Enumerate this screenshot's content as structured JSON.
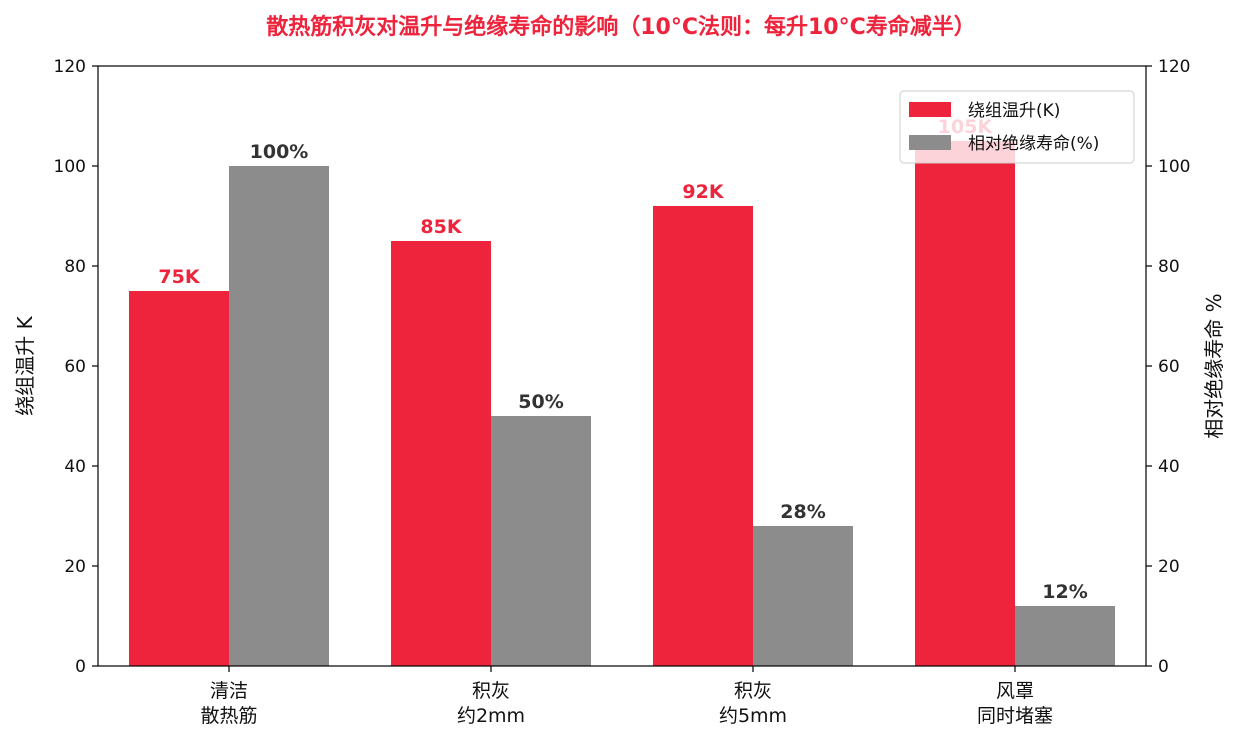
{
  "chart_data": {
    "type": "bar",
    "title": "散热筋积灰对温升与绝缘寿命的影响（10°C法则：每升10°C寿命减半）",
    "categories": [
      [
        "清洁",
        "散热筋"
      ],
      [
        "积灰",
        "约2mm"
      ],
      [
        "积灰",
        "约5mm"
      ],
      [
        "风罩",
        "同时堵塞"
      ]
    ],
    "series": [
      {
        "name": "绕组温升(K)",
        "axis": "left",
        "color": "#EE233C",
        "values": [
          75,
          85,
          92,
          105
        ],
        "labels": [
          "75K",
          "85K",
          "92K",
          "105K"
        ],
        "label_color": "#EE233C"
      },
      {
        "name": "相对绝缘寿命(%)",
        "axis": "right",
        "color": "#8C8C8C",
        "values": [
          100,
          50,
          28,
          12
        ],
        "labels": [
          "100%",
          "50%",
          "28%",
          "12%"
        ],
        "label_color": "#333333"
      }
    ],
    "ylabel_left": "绕组温升 K",
    "ylabel_right": "相对绝缘寿命 %",
    "ylim": [
      0,
      120
    ],
    "yticks": [
      "0",
      "20",
      "40",
      "60",
      "80",
      "100",
      "120"
    ],
    "grid": false,
    "legend_position": "top-right",
    "title_color": "#EE233C"
  }
}
